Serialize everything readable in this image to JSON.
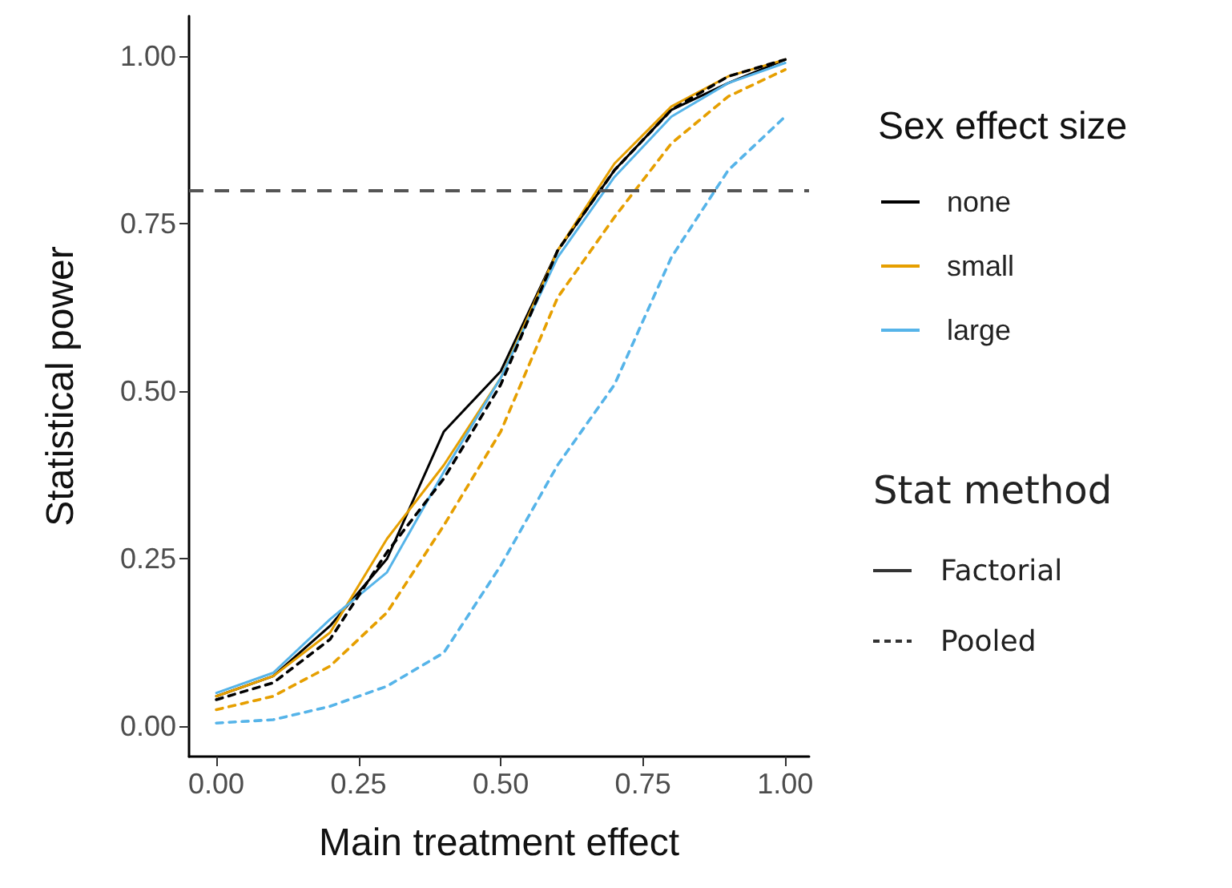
{
  "chart_data": {
    "type": "line",
    "xlabel": "Main treatment effect",
    "ylabel": "Statistical power",
    "legend_title": "Sex effect size",
    "legend": "right",
    "x": [
      0,
      0.1,
      0.2,
      0.3,
      0.4,
      0.5,
      0.6,
      0.7,
      0.8,
      0.9,
      1.0
    ],
    "series": [
      {
        "name": "none",
        "color": "#000000",
        "line_style": "solid",
        "values": [
          0.045,
          0.075,
          0.15,
          0.25,
          0.44,
          0.53,
          0.71,
          0.83,
          0.92,
          0.96,
          0.995
        ]
      },
      {
        "name": "small",
        "color": "#e69f00",
        "line_style": "solid",
        "values": [
          0.045,
          0.075,
          0.14,
          0.28,
          0.39,
          0.52,
          0.71,
          0.84,
          0.925,
          0.97,
          0.995
        ]
      },
      {
        "name": "large",
        "color": "#56b4e9",
        "line_style": "solid",
        "values": [
          0.05,
          0.08,
          0.16,
          0.23,
          0.38,
          0.52,
          0.7,
          0.82,
          0.91,
          0.96,
          0.99
        ]
      },
      {
        "color": "#000000",
        "line_style": "dashed",
        "values": [
          0.04,
          0.065,
          0.13,
          0.26,
          0.37,
          0.51,
          0.71,
          0.83,
          0.92,
          0.97,
          0.995
        ]
      },
      {
        "color": "#e69f00",
        "line_style": "dashed",
        "values": [
          0.025,
          0.045,
          0.09,
          0.17,
          0.3,
          0.44,
          0.64,
          0.76,
          0.87,
          0.94,
          0.98
        ]
      },
      {
        "color": "#56b4e9",
        "line_style": "dashed",
        "values": [
          0.005,
          0.01,
          0.03,
          0.06,
          0.11,
          0.24,
          0.39,
          0.51,
          0.7,
          0.83,
          0.91
        ]
      }
    ],
    "annotations": [
      "Stat method",
      "Factorial",
      "Pooled"
    ],
    "ref_lines": [
      {
        "axis": "y",
        "value": 0.8,
        "color": "#555555",
        "line_style": "dashed"
      }
    ],
    "xlim": [
      -0.048,
      1.042
    ],
    "ylim": [
      -0.045,
      1.06
    ],
    "xticks": [
      {
        "value": 0,
        "label": "0.00"
      },
      {
        "value": 0.25,
        "label": "0.25"
      },
      {
        "value": 0.5,
        "label": "0.50"
      },
      {
        "value": 0.75,
        "label": "0.75"
      },
      {
        "value": 1,
        "label": "1.00"
      }
    ],
    "yticks": [
      {
        "value": 0,
        "label": "0.00"
      },
      {
        "value": 0.25,
        "label": "0.25"
      },
      {
        "value": 0.5,
        "label": "0.50"
      },
      {
        "value": 0.75,
        "label": "0.75"
      },
      {
        "value": 1,
        "label": "1.00"
      }
    ],
    "grid": false,
    "marker": "none"
  }
}
